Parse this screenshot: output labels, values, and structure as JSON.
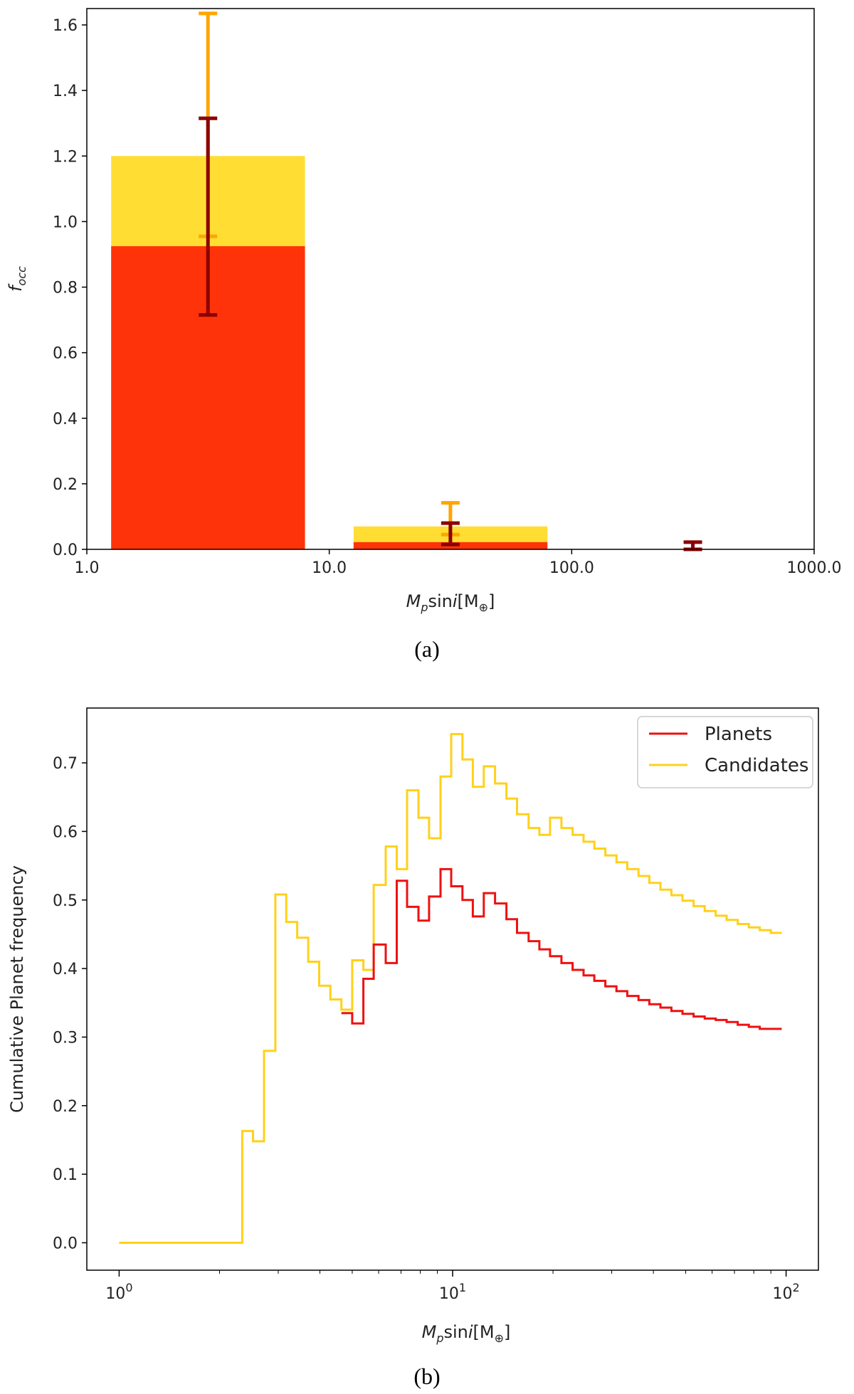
{
  "panel_a_label": "(a)",
  "panel_b_label": "(b)",
  "colors": {
    "planets_bar": "#ff330a",
    "candidates_bar": "#ffdd33",
    "planets_err": "#8b0000",
    "candidates_err": "#ffa500",
    "planets_line": "#ee1111",
    "candidates_line": "#ffd11a"
  },
  "chart_data": [
    {
      "type": "bar",
      "xlabel_parts": [
        "M",
        "p",
        "sin",
        "i",
        "[M",
        "⊕",
        "]"
      ],
      "ylabel_parts": [
        "f",
        "occ"
      ],
      "xscale": "log",
      "xlim": [
        1.0,
        1000.0
      ],
      "ylim": [
        0.0,
        1.65
      ],
      "xticks": [
        1.0,
        10.0,
        100.0,
        1000.0
      ],
      "xtick_labels": [
        "1.0",
        "10.0",
        "100.0",
        "1000.0"
      ],
      "yticks": [
        0.0,
        0.2,
        0.4,
        0.6,
        0.8,
        1.0,
        1.2,
        1.4,
        1.6
      ],
      "ytick_labels": [
        "0.0",
        "0.2",
        "0.4",
        "0.6",
        "0.8",
        "1.0",
        "1.2",
        "1.4",
        "1.6"
      ],
      "bins": [
        {
          "x_left": 1.26,
          "x_right": 7.94,
          "center": 3.16,
          "candidates": 1.2,
          "planets": 0.925,
          "candidates_err": [
            0.955,
            1.635
          ],
          "planets_err": [
            0.715,
            1.315
          ]
        },
        {
          "x_left": 12.6,
          "x_right": 79.4,
          "center": 31.6,
          "candidates": 0.07,
          "planets": 0.022,
          "candidates_err": [
            0.045,
            0.142
          ],
          "planets_err": [
            0.015,
            0.08
          ]
        },
        {
          "x_left": 126,
          "x_right": 794,
          "center": 316,
          "candidates": 0.0,
          "planets": 0.0,
          "candidates_err": null,
          "planets_err": [
            0.0,
            0.022
          ]
        }
      ]
    },
    {
      "type": "line",
      "xlabel_parts": [
        "M",
        "p",
        "sin",
        "i",
        "[M",
        "⊕",
        "]"
      ],
      "ylabel": "Cumulative Planet frequency",
      "xscale": "log",
      "xlim": [
        0.8,
        125
      ],
      "ylim": [
        -0.04,
        0.78
      ],
      "xticks": [
        1,
        10,
        100
      ],
      "xtick_labels": [
        "10^0",
        "10^1",
        "10^2"
      ],
      "yticks": [
        0.0,
        0.1,
        0.2,
        0.3,
        0.4,
        0.5,
        0.6,
        0.7
      ],
      "ytick_labels": [
        "0.0",
        "0.1",
        "0.2",
        "0.3",
        "0.4",
        "0.5",
        "0.6",
        "0.7"
      ],
      "legend": {
        "position": "top-right",
        "entries": [
          "Planets",
          "Candidates"
        ]
      },
      "series": [
        {
          "name": "Candidates",
          "step": "post",
          "x": [
            1.0,
            2.34,
            2.52,
            2.72,
            2.94,
            3.17,
            3.42,
            3.69,
            3.98,
            4.3,
            4.64,
            5.0,
            5.4,
            5.8,
            6.3,
            6.8,
            7.3,
            7.9,
            8.5,
            9.2,
            9.9,
            10.7,
            11.5,
            12.4,
            13.4,
            14.5,
            15.6,
            16.9,
            18.2,
            19.6,
            21.2,
            22.9,
            24.7,
            26.6,
            28.7,
            31.0,
            33.4,
            36.1,
            38.9,
            42.0,
            45.3,
            48.9,
            52.8,
            57.0,
            61.5,
            66.3,
            71.6,
            77.3,
            83.4,
            90.0,
            97.0
          ],
          "y": [
            0.0,
            0.163,
            0.148,
            0.28,
            0.508,
            0.468,
            0.445,
            0.41,
            0.375,
            0.355,
            0.34,
            0.412,
            0.398,
            0.522,
            0.578,
            0.545,
            0.66,
            0.62,
            0.59,
            0.68,
            0.742,
            0.705,
            0.665,
            0.695,
            0.67,
            0.648,
            0.625,
            0.605,
            0.595,
            0.62,
            0.605,
            0.595,
            0.585,
            0.575,
            0.565,
            0.555,
            0.545,
            0.535,
            0.525,
            0.515,
            0.507,
            0.499,
            0.491,
            0.484,
            0.477,
            0.471,
            0.465,
            0.46,
            0.456,
            0.452,
            0.452
          ]
        },
        {
          "name": "Planets",
          "step": "post",
          "x": [
            4.64,
            5.0,
            5.4,
            5.8,
            6.3,
            6.8,
            7.3,
            7.9,
            8.5,
            9.2,
            9.9,
            10.7,
            11.5,
            12.4,
            13.4,
            14.5,
            15.6,
            16.9,
            18.2,
            19.6,
            21.2,
            22.9,
            24.7,
            26.6,
            28.7,
            31.0,
            33.4,
            36.1,
            38.9,
            42.0,
            45.3,
            48.9,
            52.8,
            57.0,
            61.5,
            66.3,
            71.6,
            77.3,
            83.4,
            90.0,
            97.0
          ],
          "y": [
            0.335,
            0.32,
            0.385,
            0.435,
            0.408,
            0.528,
            0.49,
            0.47,
            0.505,
            0.545,
            0.52,
            0.5,
            0.476,
            0.51,
            0.495,
            0.472,
            0.452,
            0.44,
            0.428,
            0.418,
            0.408,
            0.398,
            0.39,
            0.382,
            0.374,
            0.367,
            0.36,
            0.354,
            0.348,
            0.343,
            0.338,
            0.334,
            0.33,
            0.327,
            0.325,
            0.322,
            0.318,
            0.315,
            0.312,
            0.312,
            0.312
          ]
        }
      ]
    }
  ]
}
